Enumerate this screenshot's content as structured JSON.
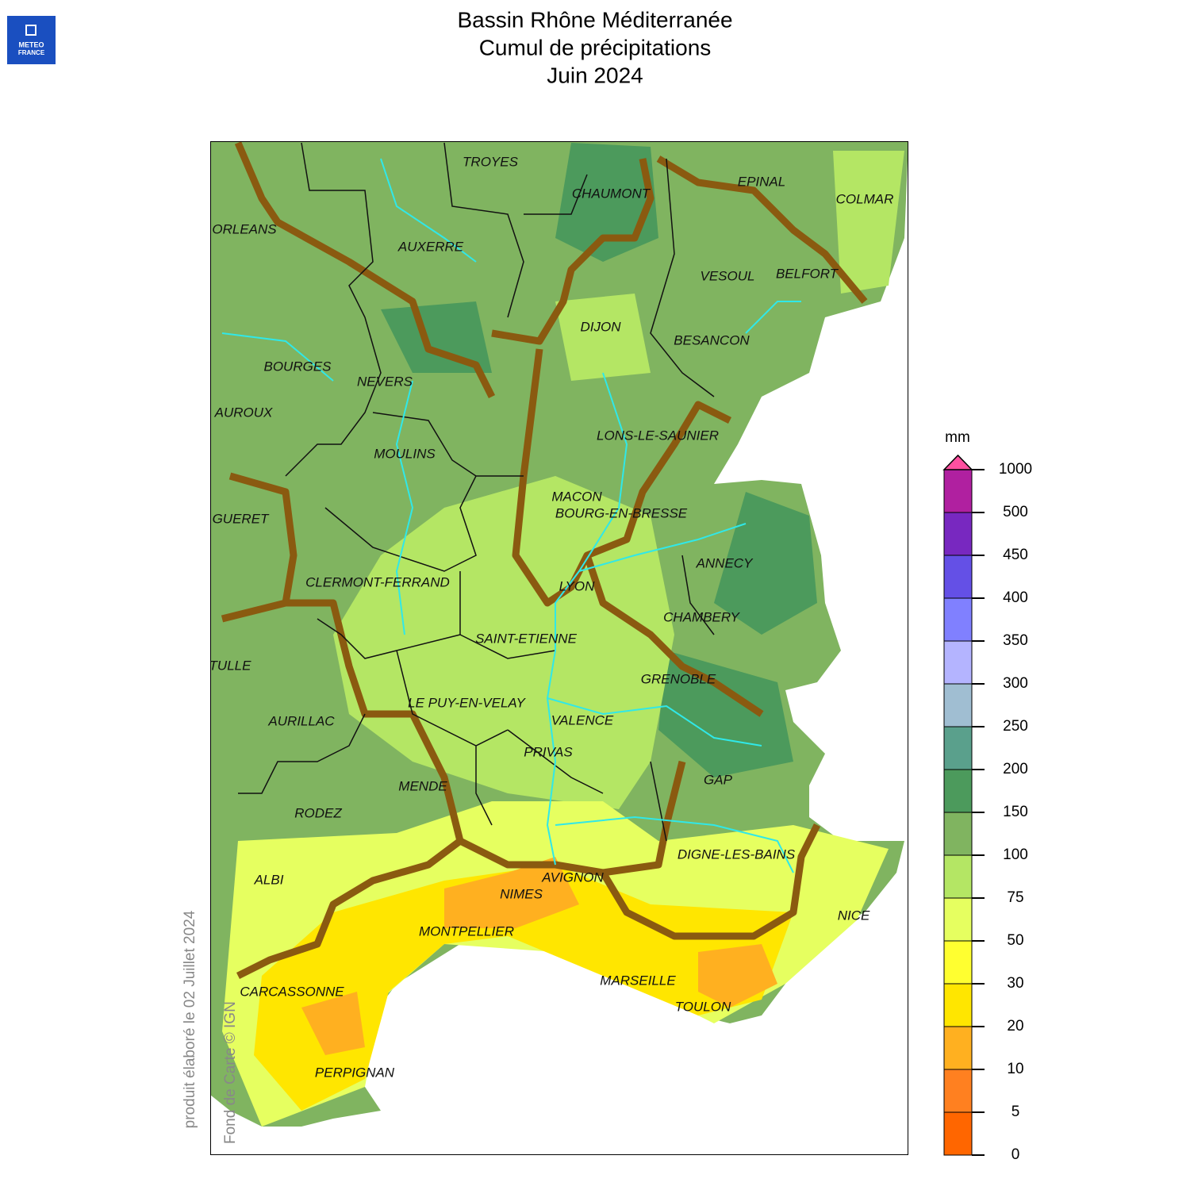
{
  "header": {
    "title_lines": [
      "Bassin Rhône Méditerranée",
      "Cumul de précipitations",
      "Juin 2024"
    ],
    "logo": [
      "METEO",
      "FRANCE"
    ]
  },
  "map": {
    "cities": [
      "TROYES",
      "CHAUMONT",
      "EPINAL",
      "COLMAR",
      "ORLEANS",
      "AUXERRE",
      "VESOUL",
      "BELFORT",
      "DIJON",
      "BESANCON",
      "BOURGES",
      "NEVERS",
      "AUROUX",
      "LONS-LE-SAUNIER",
      "MOULINS",
      "MACON",
      "BOURG-EN-BRESSE",
      "GUERET",
      "ANNECY",
      "CLERMONT-FERRAND",
      "LYON",
      "CHAMBERY",
      "SAINT-ETIENNE",
      "TULLE",
      "GRENOBLE",
      "LE PUY-EN-VELAY",
      "AURILLAC",
      "VALENCE",
      "PRIVAS",
      "GAP",
      "MENDE",
      "RODEZ",
      "DIGNE-LES-BAINS",
      "AVIGNON",
      "ALBI",
      "NIMES",
      "NICE",
      "MONTPELLIER",
      "MARSEILLE",
      "CARCASSONNE",
      "TOULON",
      "PERPIGNAN"
    ],
    "credits": [
      "produit élaboré le 02 Juillet 2024",
      "Fond de Carte © IGN"
    ]
  },
  "legend": {
    "unit": "mm",
    "ticks": [
      0,
      5,
      10,
      20,
      30,
      50,
      75,
      100,
      150,
      200,
      250,
      300,
      350,
      400,
      450,
      500,
      1000
    ],
    "colors": [
      "#ff6600",
      "#ff8020",
      "#ffb020",
      "#ffe600",
      "#ffff30",
      "#e6ff60",
      "#b4e664",
      "#80b460",
      "#4c9a5c",
      "#5aa08c",
      "#a0bed2",
      "#b4b4ff",
      "#8080ff",
      "#6450e6",
      "#7828c0",
      "#b020a0"
    ],
    "over_color": "#ff50a0"
  }
}
